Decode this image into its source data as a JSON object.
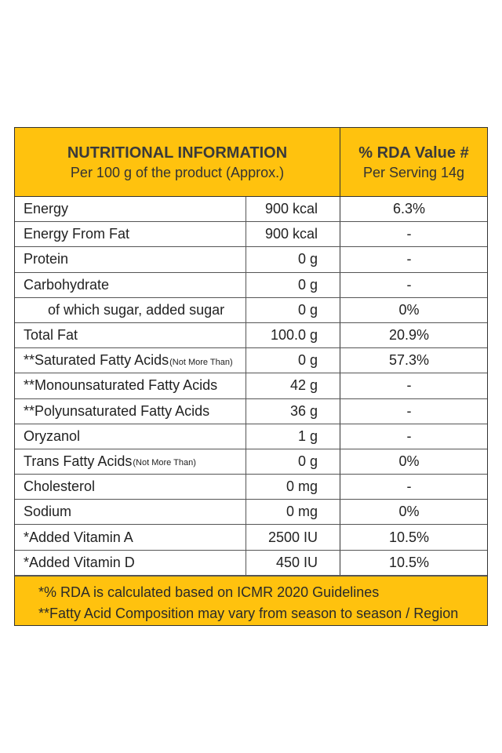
{
  "header": {
    "title": "NUTRITIONAL INFORMATION",
    "subtitle": "Per 100 g of the product (Approx.)",
    "rda_title": "% RDA Value #",
    "rda_subtitle": "Per Serving 14g"
  },
  "rows": [
    {
      "name": "Energy",
      "note": "",
      "amount": "900 kcal",
      "rda": "6.3%"
    },
    {
      "name": "Energy From Fat",
      "note": "",
      "amount": "900 kcal",
      "rda": "-"
    },
    {
      "name": "Protein",
      "note": "",
      "amount": "0 g",
      "rda": "-"
    },
    {
      "name": "Carbohydrate",
      "note": "",
      "amount": "0 g",
      "rda": "-"
    },
    {
      "name": "of which sugar, added sugar",
      "note": "",
      "amount": "0 g",
      "rda": "0%"
    },
    {
      "name": "Total Fat",
      "note": "",
      "amount": "100.0 g",
      "rda": "20.9%"
    },
    {
      "name": "**Saturated Fatty Acids",
      "note": "(Not More Than)",
      "amount": "0 g",
      "rda": "57.3%"
    },
    {
      "name": "**Monounsaturated Fatty Acids",
      "note": "",
      "amount": "42 g",
      "rda": "-"
    },
    {
      "name": "**Polyunsaturated Fatty Acids",
      "note": "",
      "amount": "36 g",
      "rda": "-"
    },
    {
      "name": "Oryzanol",
      "note": "",
      "amount": "1 g",
      "rda": "-"
    },
    {
      "name": "Trans Fatty Acids",
      "note": "(Not More Than)",
      "amount": "0 g",
      "rda": "0%"
    },
    {
      "name": "Cholesterol",
      "note": "",
      "amount": "0 mg",
      "rda": "-"
    },
    {
      "name": "Sodium",
      "note": "",
      "amount": "0 mg",
      "rda": "0%"
    },
    {
      "name": "*Added Vitamin A",
      "note": "",
      "amount": "2500 IU",
      "rda": "10.5%"
    },
    {
      "name": "*Added Vitamin D",
      "note": "",
      "amount": "450 IU",
      "rda": "10.5%"
    }
  ],
  "footer": {
    "line1": "*% RDA is calculated based on ICMR 2020 Guidelines",
    "line2": "**Fatty Acid Composition may vary from season to season / Region"
  },
  "colors": {
    "accent": "#FFC20E",
    "border": "#333333"
  }
}
